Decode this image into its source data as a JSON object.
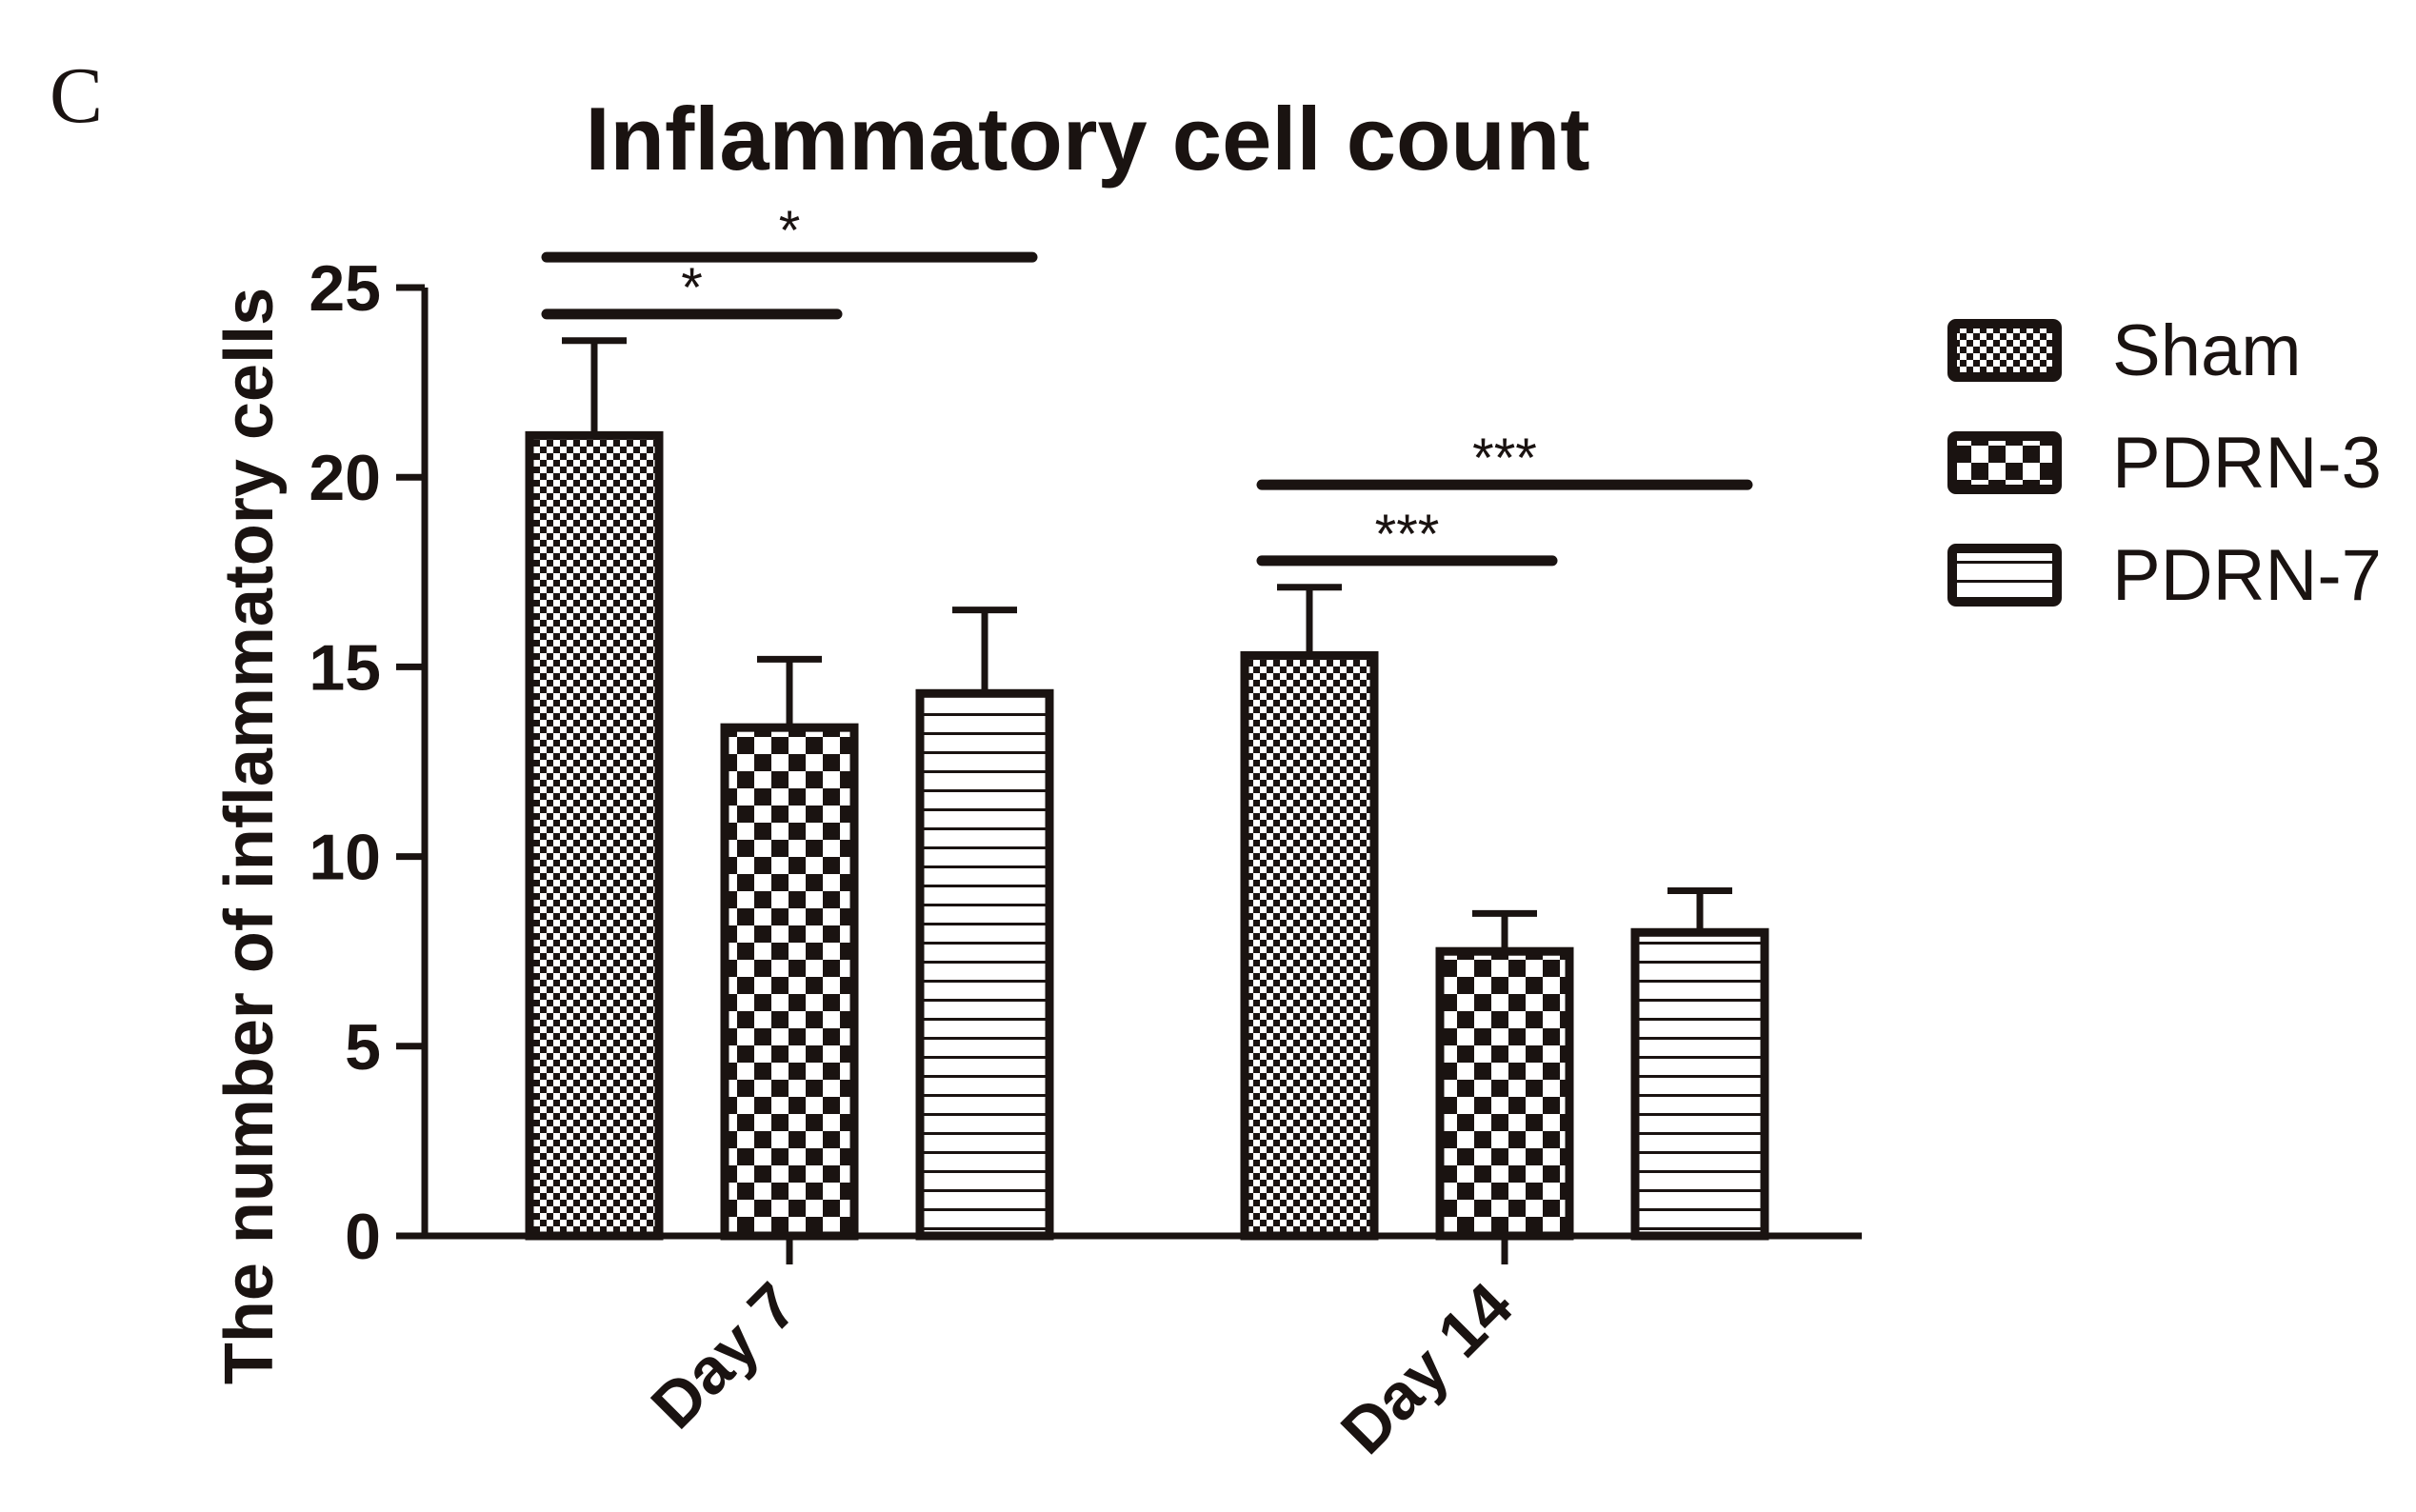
{
  "panel_label": "C",
  "chart_data": {
    "type": "bar",
    "title": "Inflammatory cell count",
    "xlabel": "",
    "ylabel": "The number of inflammatory cells",
    "categories": [
      "Day 7",
      "Day 14"
    ],
    "ylim": [
      0,
      25
    ],
    "yticks": [
      0,
      5,
      10,
      15,
      20,
      25
    ],
    "grid": false,
    "legend_position": "right",
    "series": [
      {
        "name": "Sham",
        "pattern": "fine-checker",
        "values": [
          21.1,
          15.3
        ],
        "errors": [
          2.5,
          1.8
        ]
      },
      {
        "name": "PDRN-3",
        "pattern": "coarse-checker",
        "values": [
          13.4,
          7.5
        ],
        "errors": [
          1.8,
          1.0
        ]
      },
      {
        "name": "PDRN-7",
        "pattern": "horizontal-stripes",
        "values": [
          14.3,
          8.0
        ],
        "errors": [
          2.2,
          1.1
        ]
      }
    ],
    "significance": [
      {
        "category": "Day 7",
        "from": "Sham",
        "to": "PDRN-3",
        "label": "*",
        "y": 24.3
      },
      {
        "category": "Day 7",
        "from": "Sham",
        "to": "PDRN-7",
        "label": "*",
        "y": 25.8
      },
      {
        "category": "Day 14",
        "from": "Sham",
        "to": "PDRN-3",
        "label": "***",
        "y": 17.8
      },
      {
        "category": "Day 14",
        "from": "Sham",
        "to": "PDRN-7",
        "label": "***",
        "y": 19.8
      }
    ],
    "colors": {
      "ink": "#1a1311",
      "background": "#ffffff"
    }
  }
}
